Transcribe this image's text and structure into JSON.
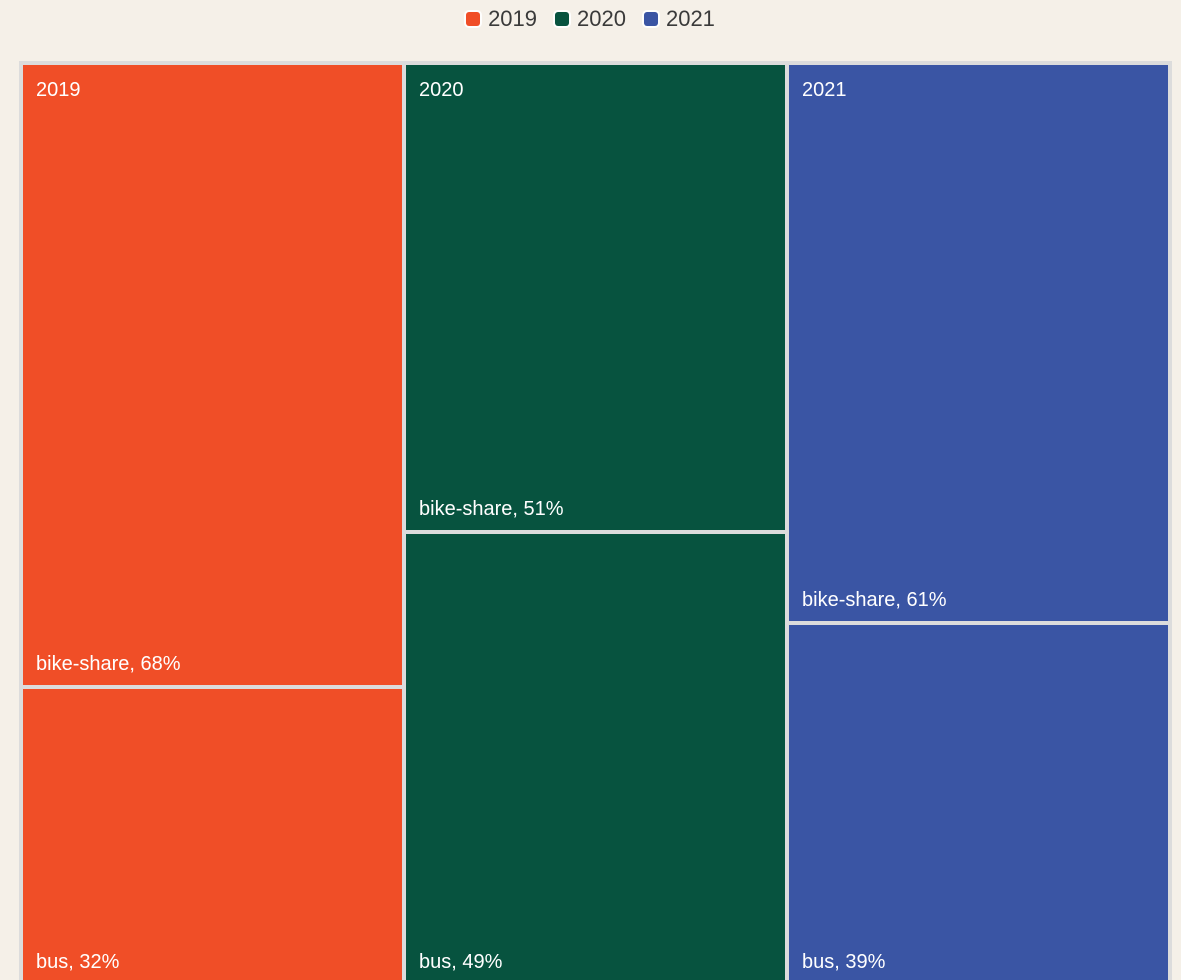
{
  "legend": [
    {
      "label": "2019",
      "color": "#f04e27"
    },
    {
      "label": "2020",
      "color": "#07533f"
    },
    {
      "label": "2021",
      "color": "#3a55a4"
    }
  ],
  "chart_data": {
    "type": "treemap",
    "groups": [
      {
        "name": "2019",
        "color": "#f04e27",
        "children": [
          {
            "name": "bike-share",
            "value": 68,
            "label": "bike-share, 68%"
          },
          {
            "name": "bus",
            "value": 32,
            "label": "bus, 32%"
          }
        ]
      },
      {
        "name": "2020",
        "color": "#07533f",
        "children": [
          {
            "name": "bike-share",
            "value": 51,
            "label": "bike-share, 51%"
          },
          {
            "name": "bus",
            "value": 49,
            "label": "bus, 49%"
          }
        ]
      },
      {
        "name": "2021",
        "color": "#3a55a4",
        "children": [
          {
            "name": "bike-share",
            "value": 61,
            "label": "bike-share, 61%"
          },
          {
            "name": "bus",
            "value": 39,
            "label": "bus, 39%"
          }
        ]
      }
    ]
  }
}
